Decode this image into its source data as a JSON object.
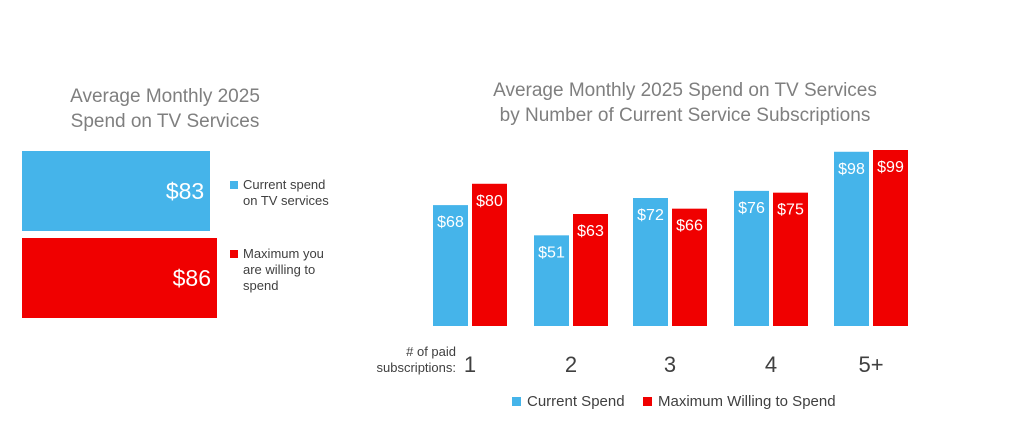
{
  "left_chart": {
    "title": "Average Monthly 2025\nSpend on TV Services",
    "colors": {
      "current": "#45b4ea",
      "max": "#f00000"
    },
    "chart_data": {
      "type": "bar",
      "orientation": "horizontal",
      "categories": [
        "Current spend on TV services",
        "Maximum you are willing to spend"
      ],
      "values": [
        83,
        86
      ],
      "data_labels": [
        "$83",
        "$86"
      ],
      "xlim": [
        0,
        86
      ]
    },
    "legend": [
      {
        "label": "Current spend\non TV services",
        "color": "#45b4ea"
      },
      {
        "label": "Maximum you\nare willing to\nspend",
        "color": "#f00000"
      }
    ]
  },
  "right_chart": {
    "title": "Average Monthly 2025 Spend on TV Services\nby Number of Current Service Subscriptions",
    "axis_label": "# of paid\nsubscriptions:",
    "chart_data": {
      "type": "bar",
      "categories": [
        "1",
        "2",
        "3",
        "4",
        "5+"
      ],
      "series": [
        {
          "name": "Current Spend",
          "color": "#45b4ea",
          "values": [
            68,
            51,
            72,
            76,
            98
          ],
          "labels": [
            "$68",
            "$51",
            "$72",
            "$76",
            "$98"
          ]
        },
        {
          "name": "Maximum Willing to Spend",
          "color": "#f00000",
          "values": [
            80,
            63,
            66,
            75,
            99
          ],
          "labels": [
            "$80",
            "$63",
            "$66",
            "$75",
            "$99"
          ]
        }
      ],
      "ylim": [
        0,
        99
      ],
      "legend_position": "bottom"
    }
  }
}
